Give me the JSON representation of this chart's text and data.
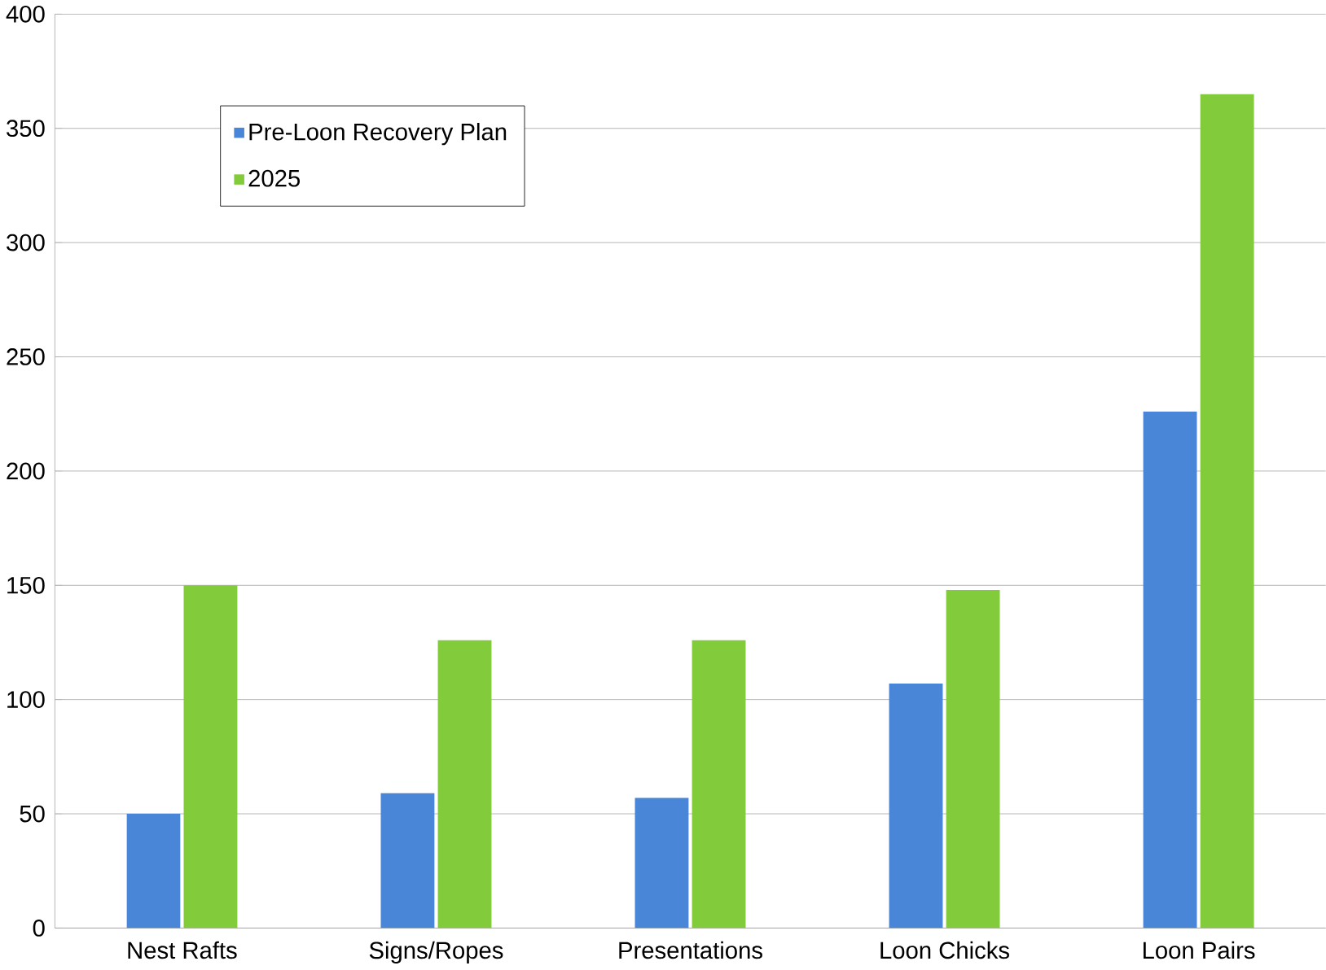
{
  "chart_data": {
    "type": "bar",
    "categories": [
      "Nest Rafts",
      "Signs/Ropes",
      "Presentations",
      "Loon Chicks",
      "Loon Pairs"
    ],
    "series": [
      {
        "name": "Pre-Loon Recovery Plan",
        "color": "#4a86d8",
        "values": [
          50,
          59,
          57,
          107,
          226
        ]
      },
      {
        "name": "2025",
        "color": "#82cc3c",
        "values": [
          150,
          126,
          126,
          148,
          365
        ]
      }
    ],
    "ylim": [
      0,
      400
    ],
    "yticks": [
      0,
      50,
      100,
      150,
      200,
      250,
      300,
      350,
      400
    ],
    "grid": "y",
    "legend": "top left"
  }
}
